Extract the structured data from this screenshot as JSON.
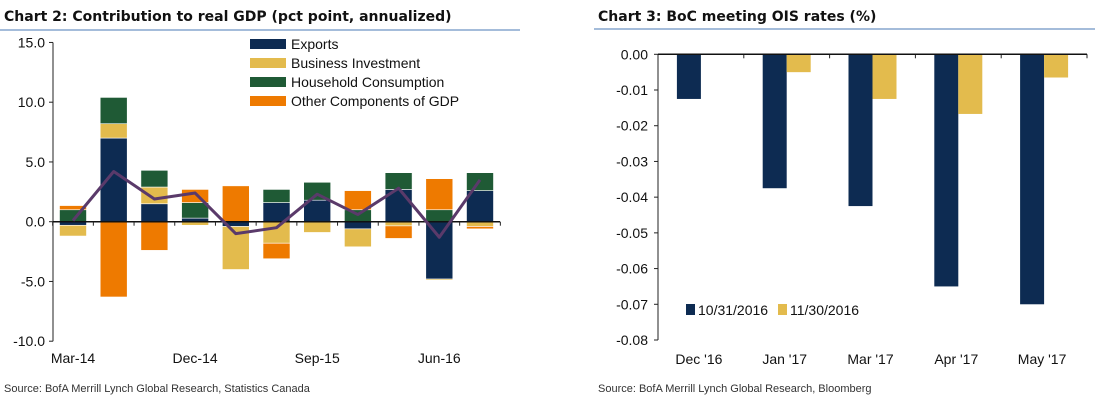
{
  "chart_data": [
    {
      "type": "bar",
      "stacked": true,
      "title": "Chart 2: Contribution to real GDP (pct point, annualized)",
      "source": "Source: BofA Merrill Lynch Global Research, Statistics Canada",
      "categories": [
        "Mar-14",
        "Jun-14",
        "Sep-14",
        "Dec-14",
        "Mar-15",
        "Jun-15",
        "Sep-15",
        "Dec-15",
        "Mar-16",
        "Jun-16",
        "Sep-16"
      ],
      "x_tick_labels": [
        "Mar-14",
        "Dec-14",
        "Sep-15",
        "Jun-16"
      ],
      "y_tick_labels": [
        "15.0",
        "10.0",
        "5.0",
        "0.0",
        "-5.0",
        "-10.0"
      ],
      "ylim": [
        -10,
        15
      ],
      "legend_position": "top-right",
      "series": [
        {
          "name": "Exports",
          "color": "#0d2b52",
          "values": [
            -0.3,
            7.0,
            1.5,
            0.3,
            -0.4,
            1.6,
            1.8,
            -0.6,
            2.7,
            -4.8,
            2.6
          ]
        },
        {
          "name": "Business Investment",
          "color": "#e3bb4d",
          "values": [
            -0.9,
            1.2,
            1.4,
            -0.3,
            -3.6,
            -1.8,
            -0.9,
            -1.5,
            -0.35,
            -0.1,
            -0.4
          ]
        },
        {
          "name": "Household Consumption",
          "color": "#1f5a35",
          "values": [
            1.0,
            2.2,
            1.4,
            1.3,
            0.0,
            1.1,
            1.5,
            1.0,
            1.4,
            1.0,
            1.5
          ]
        },
        {
          "name": "Other Components of GDP",
          "color": "#ee7a00",
          "values": [
            0.35,
            -6.3,
            -2.4,
            1.1,
            3.0,
            -1.3,
            0.0,
            1.6,
            -1.05,
            2.6,
            -0.2
          ]
        }
      ],
      "line": {
        "color": "#5a3a6a",
        "values": [
          0.1,
          4.2,
          1.9,
          2.4,
          -1.0,
          -0.5,
          2.3,
          0.6,
          2.8,
          -1.3,
          3.5
        ]
      }
    },
    {
      "type": "bar",
      "title": "Chart 3: BoC meeting OIS rates (%)",
      "source": "Source: BofA Merrill Lynch Global Research, Bloomberg",
      "categories": [
        "Dec '16",
        "Jan '17",
        "Mar '17",
        "Apr '17",
        "May '17"
      ],
      "y_tick_labels": [
        "0.00",
        "-0.01",
        "-0.02",
        "-0.03",
        "-0.04",
        "-0.05",
        "-0.06",
        "-0.07",
        "-0.08"
      ],
      "ylim": [
        -0.08,
        0
      ],
      "legend_position": "bottom-left",
      "series": [
        {
          "name": "10/31/2016",
          "color": "#0d2b52",
          "values": [
            -0.0125,
            -0.0375,
            -0.0425,
            -0.065,
            -0.07
          ]
        },
        {
          "name": "11/30/2016",
          "color": "#e3bb4d",
          "values": [
            0.0,
            -0.005,
            -0.0125,
            -0.0167,
            -0.0065
          ]
        }
      ]
    }
  ],
  "accent_color": "#4a7ab5"
}
